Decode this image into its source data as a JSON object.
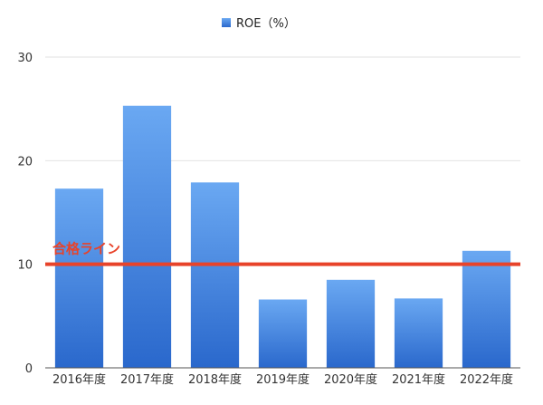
{
  "chart_data": {
    "type": "bar",
    "categories": [
      "2016年度",
      "2017年度",
      "2018年度",
      "2019年度",
      "2020年度",
      "2021年度",
      "2022年度"
    ],
    "series": [
      {
        "name": "ROE（%）",
        "values": [
          17.3,
          25.3,
          17.9,
          6.6,
          8.5,
          6.7,
          11.3
        ]
      }
    ],
    "ylim": [
      0,
      30
    ],
    "yticks": [
      0,
      10,
      20,
      30
    ],
    "grid": true,
    "legend_position": "top-center",
    "reference_line": {
      "value": 10,
      "label": "合格ライン"
    },
    "colors": {
      "bar_top": "#6aa8f2",
      "bar_bottom": "#2a68cc",
      "reference_line": "#e8432a",
      "grid": "#e2e2e2",
      "axis": "#555555"
    }
  }
}
